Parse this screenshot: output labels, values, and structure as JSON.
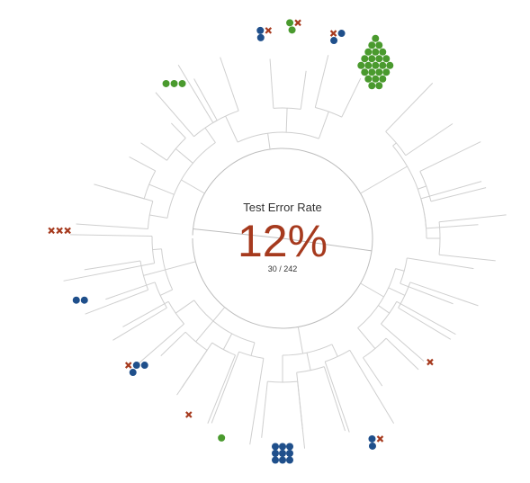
{
  "chart_data": {
    "type": "radial-dendrogram",
    "title": "Test Error Rate",
    "value_label": "12%",
    "fraction_label": "30 / 242",
    "errors": 30,
    "total": 242,
    "legend": "none",
    "colors": {
      "branch": "#cfcfcf",
      "inner_ring": "#bdbdbd",
      "correct_class_a": "#4a9a2e",
      "correct_class_b": "#1f4f8b",
      "error": "#a63a1e",
      "title": "#333333",
      "value": "#a63a1e"
    },
    "leaves": [
      {
        "angle": -95,
        "r": 232,
        "marks": [
          [
            "b",
            1
          ],
          [
            "x",
            1
          ],
          [
            "b",
            0
          ]
        ]
      },
      {
        "angle": -87,
        "r": 240,
        "marks": [
          [
            "g",
            1
          ],
          [
            "x",
            1
          ],
          [
            "g",
            0
          ]
        ]
      },
      {
        "angle": -75,
        "r": 236,
        "marks": [
          [
            "x",
            1
          ],
          [
            "b",
            1
          ],
          [
            "b",
            0
          ]
        ]
      },
      {
        "angle": -62,
        "r": 220,
        "marks": [
          [
            "g",
            24
          ]
        ]
      },
      {
        "angle": -125,
        "r": 210,
        "marks": [
          [
            "g",
            3
          ]
        ]
      },
      {
        "angle": -178,
        "r": 248,
        "marks": [
          [
            "x",
            3
          ]
        ]
      },
      {
        "angle": 163,
        "r": 235,
        "marks": [
          [
            "b",
            2
          ]
        ]
      },
      {
        "angle": 139,
        "r": 215,
        "marks": [
          [
            "x",
            1
          ],
          [
            "b",
            2
          ],
          [
            "b",
            0
          ]
        ]
      },
      {
        "angle": 118,
        "r": 222,
        "marks": [
          [
            "x",
            1
          ]
        ]
      },
      {
        "angle": 107,
        "r": 232,
        "marks": [
          [
            "g",
            1
          ]
        ]
      },
      {
        "angle": 90,
        "r": 242,
        "marks": [
          [
            "b",
            9
          ]
        ]
      },
      {
        "angle": 65,
        "r": 246,
        "marks": [
          [
            "b",
            1
          ],
          [
            "x",
            1
          ],
          [
            "b",
            0
          ]
        ]
      },
      {
        "angle": 40,
        "r": 214,
        "marks": [
          [
            "x",
            1
          ]
        ]
      }
    ]
  }
}
